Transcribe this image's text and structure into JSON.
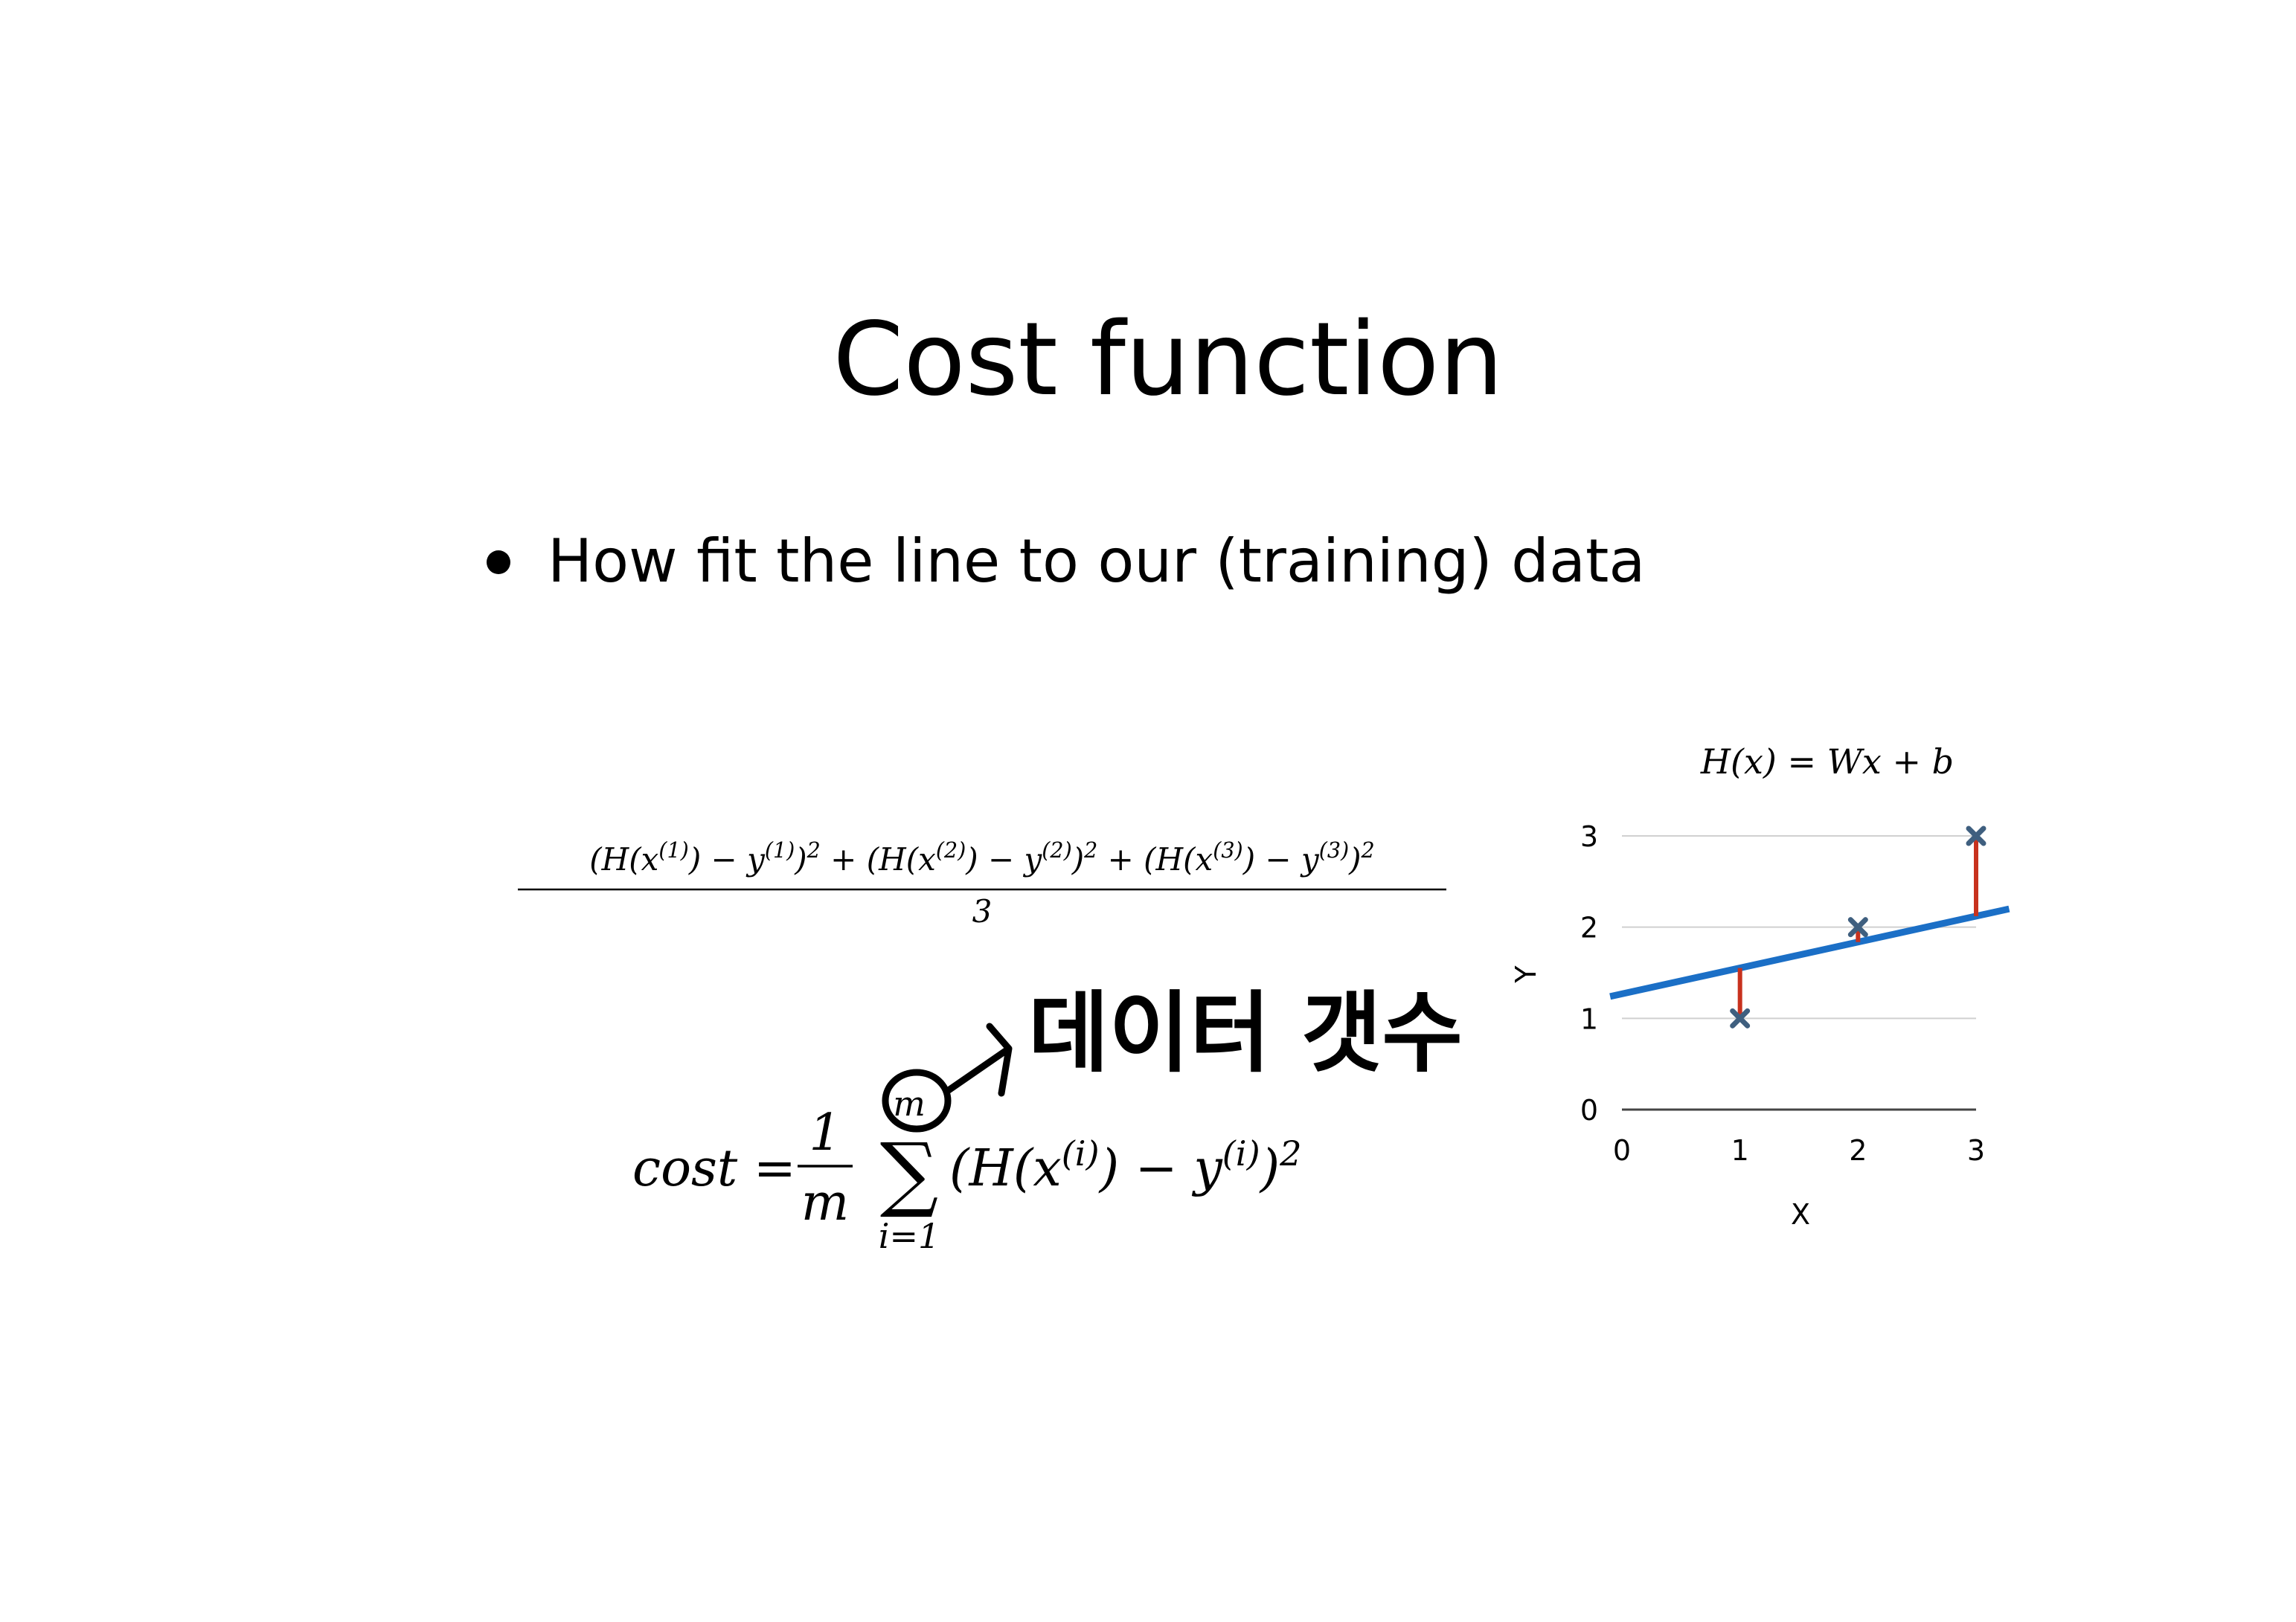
{
  "title": "Cost function",
  "bullet": "How fit the line to our (training) data",
  "average_formula": {
    "numerator": [
      "(H(x",
      {
        "sup": "(1)"
      },
      ") − y",
      {
        "sup": "(1)"
      },
      ")",
      {
        "sup": "2"
      },
      " + (H(x",
      {
        "sup": "(2)"
      },
      ") − y",
      {
        "sup": "(2)"
      },
      ")",
      {
        "sup": "2"
      },
      " + (H(x",
      {
        "sup": "(3)"
      },
      ") − y",
      {
        "sup": "(3)"
      },
      ")",
      {
        "sup": "2"
      }
    ],
    "denominator": "3"
  },
  "cost_formula": {
    "lhs": "cost =",
    "fraction_numerator": "1",
    "fraction_denominator": "m",
    "sum_symbol": "∑",
    "sum_upper": "m",
    "sum_lower": "i=1",
    "body": [
      "(H(x",
      {
        "sup": "(i)"
      },
      ") − y",
      {
        "sup": "(i)"
      },
      ")",
      {
        "sup": "2"
      }
    ]
  },
  "annotation": "데이터 갯수",
  "chart_data": {
    "type": "scatter",
    "title": "H(x) = Wx + b",
    "x_label": "X",
    "y_label": "Y",
    "series": [
      {
        "x": [
          1,
          2,
          3
        ],
        "values": [
          1,
          2,
          3
        ],
        "color": "#3f5f7f"
      }
    ],
    "fit_line": {
      "x": [
        -0.1,
        3.28
      ],
      "values": [
        1.24,
        2.2
      ],
      "color": "#1b6fc6"
    },
    "residual_color": "#c8321e",
    "xlim": [
      0,
      3
    ],
    "ylim": [
      0,
      3
    ],
    "xticks": [
      0,
      1,
      2,
      3
    ],
    "yticks": [
      0,
      1,
      2,
      3
    ],
    "grid": true
  }
}
